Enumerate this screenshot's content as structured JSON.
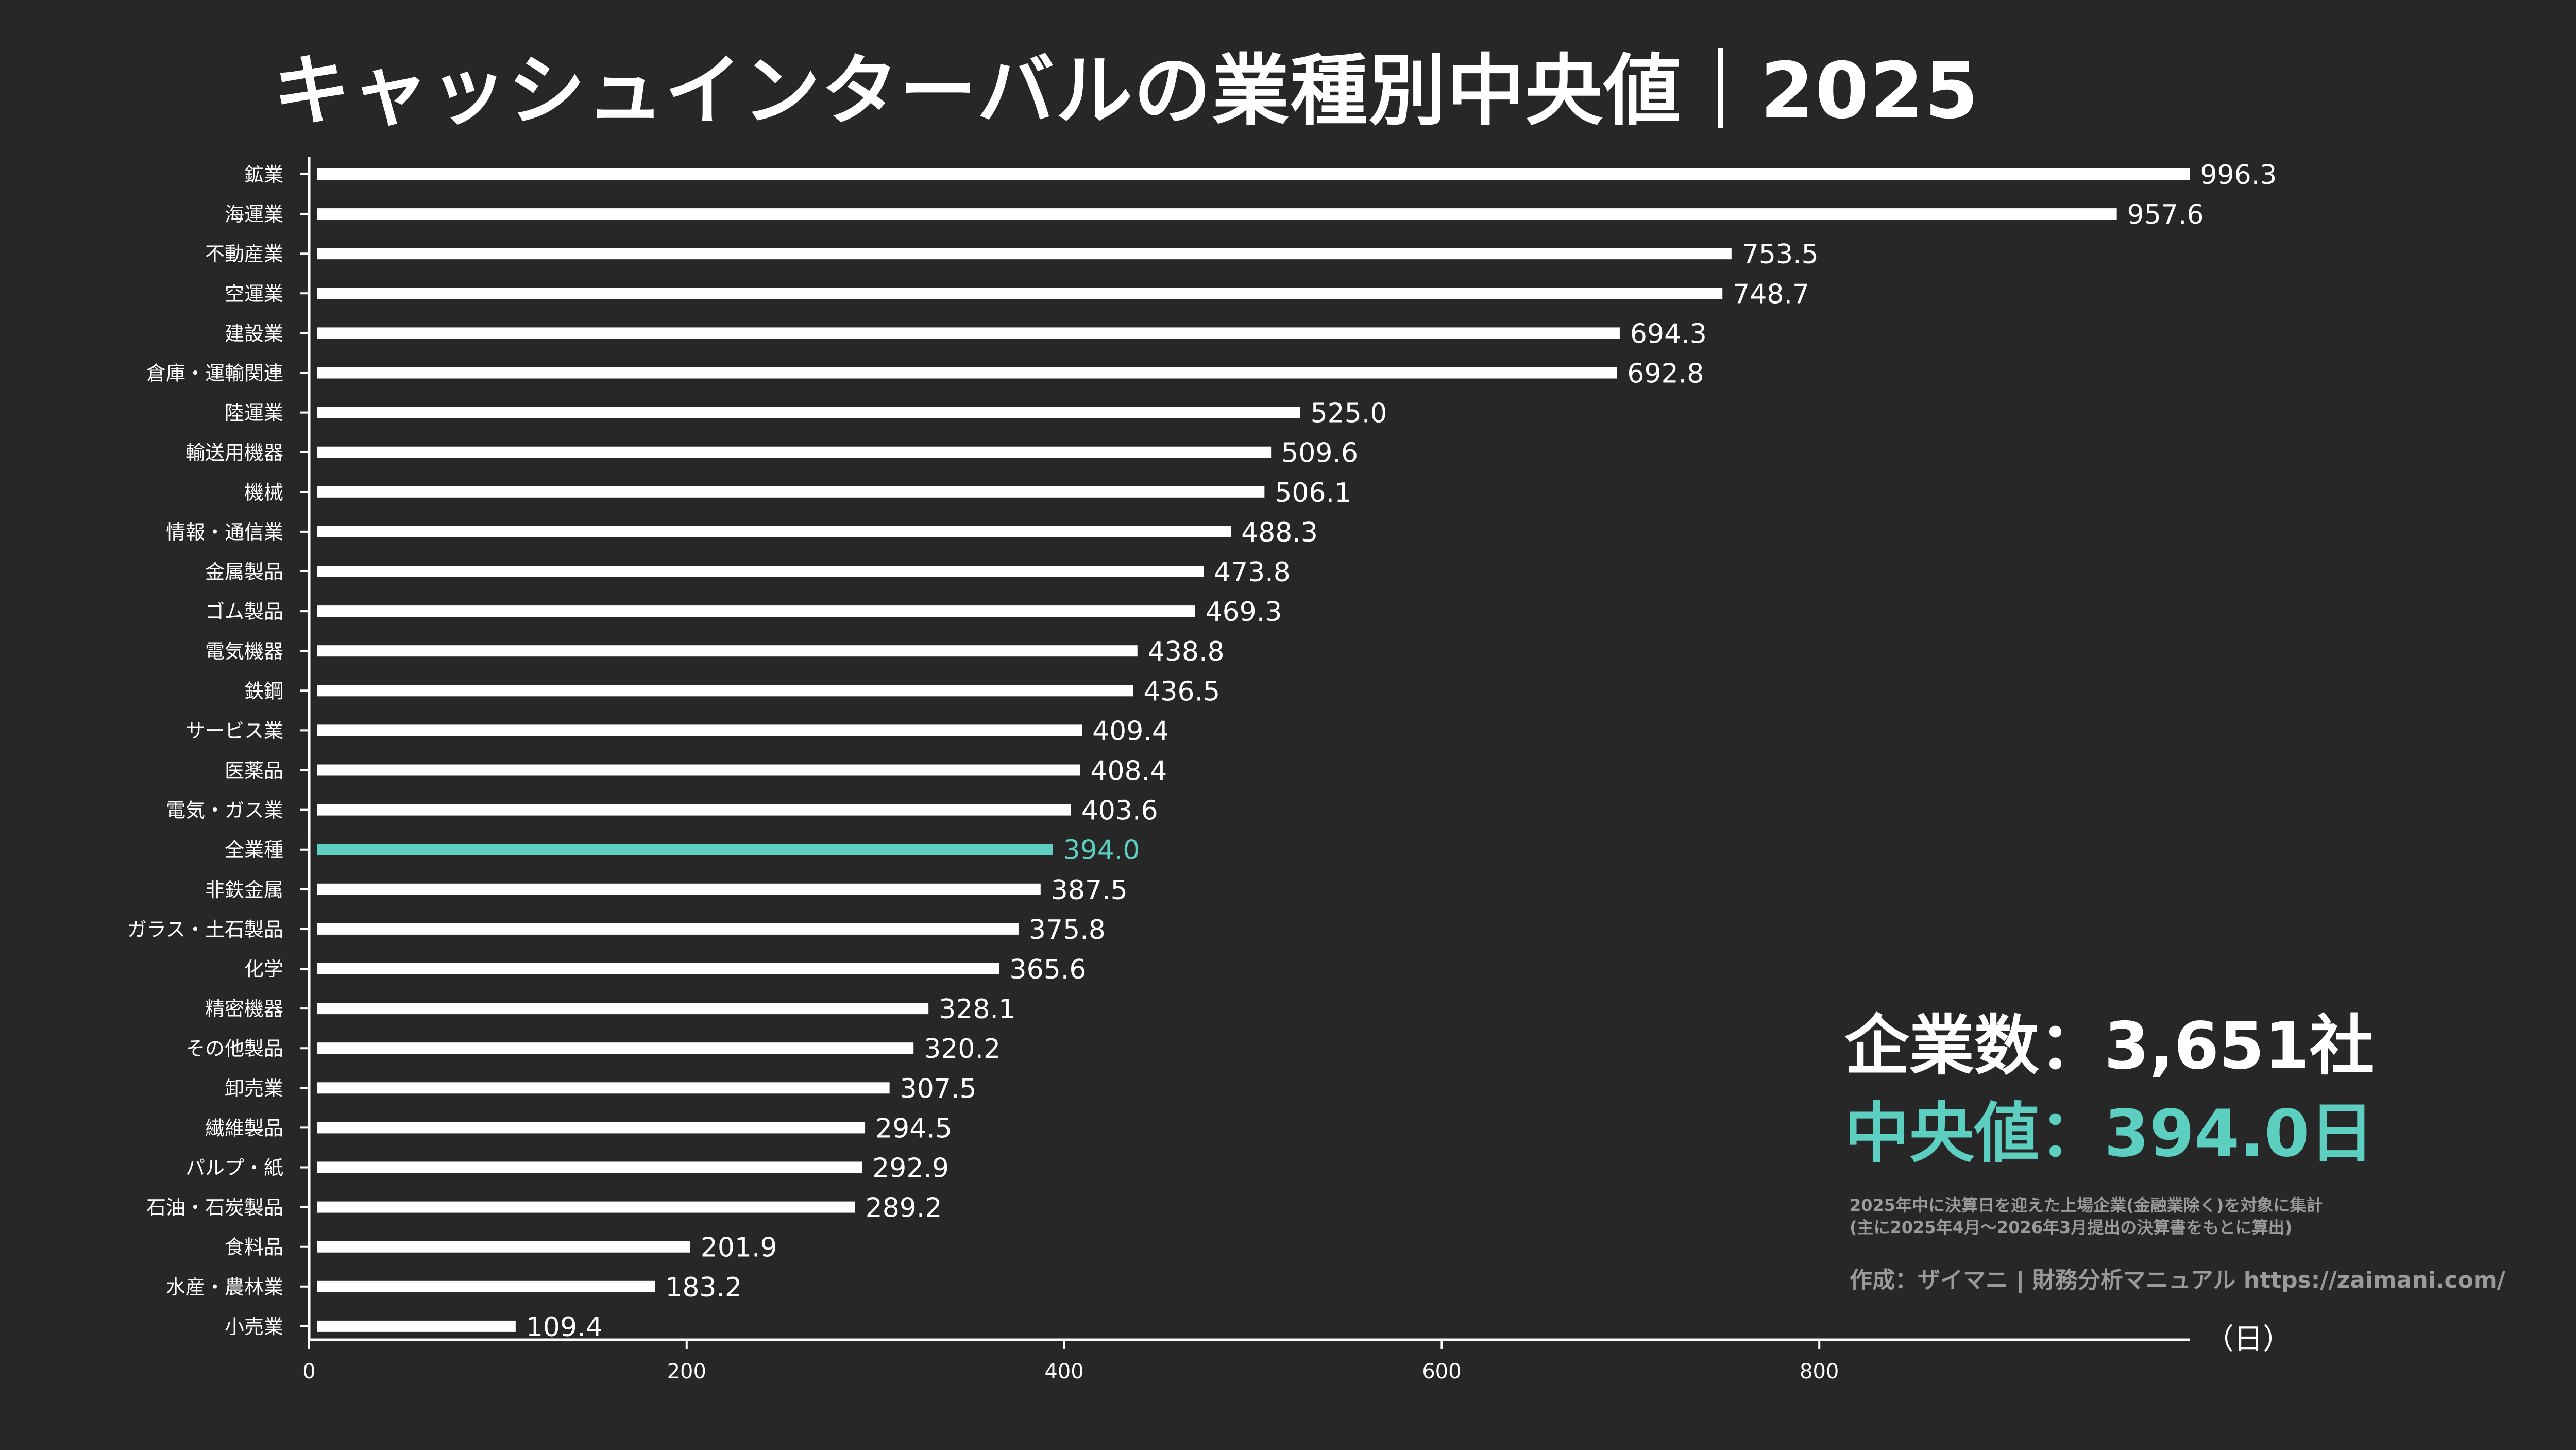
{
  "title": "キャッシュインターバルの業種別中央値｜2025",
  "summary": {
    "company_count": "企業数：3,651社",
    "median": "中央値：394.0日"
  },
  "notes": {
    "line1": "2025年中に決算日を迎えた上場企業(金融業除く)を対象に集計",
    "line2": "(主に2025年4月〜2026年3月提出の決算書をもとに算出)"
  },
  "credit": "作成：ザイマニ | 財務分析マニュアル https://zaimani.com/",
  "colors": {
    "background": "#272727",
    "bar": "#ffffff",
    "highlight": "#5ccfc0",
    "note_text": "#9a9a9a"
  },
  "chart_data": {
    "type": "bar",
    "orientation": "horizontal",
    "categories": [
      "鉱業",
      "海運業",
      "不動産業",
      "空運業",
      "建設業",
      "倉庫・運輸関連",
      "陸運業",
      "輸送用機器",
      "機械",
      "情報・通信業",
      "金属製品",
      "ゴム製品",
      "電気機器",
      "鉄鋼",
      "サービス業",
      "医薬品",
      "電気・ガス業",
      "全業種",
      "非鉄金属",
      "ガラス・土石製品",
      "化学",
      "精密機器",
      "その他製品",
      "卸売業",
      "繊維製品",
      "パルプ・紙",
      "石油・石炭製品",
      "食料品",
      "水産・農林業",
      "小売業"
    ],
    "values": [
      996.3,
      957.6,
      753.5,
      748.7,
      694.3,
      692.8,
      525.0,
      509.6,
      506.1,
      488.3,
      473.8,
      469.3,
      438.8,
      436.5,
      409.4,
      408.4,
      403.6,
      394.0,
      387.5,
      375.8,
      365.6,
      328.1,
      320.2,
      307.5,
      294.5,
      292.9,
      289.2,
      201.9,
      183.2,
      109.4
    ],
    "value_labels": [
      "996.3",
      "957.6",
      "753.5",
      "748.7",
      "694.3",
      "692.8",
      "525.0",
      "509.6",
      "506.1",
      "488.3",
      "473.8",
      "469.3",
      "438.8",
      "436.5",
      "409.4",
      "408.4",
      "403.6",
      "394.0",
      "387.5",
      "375.8",
      "365.6",
      "328.1",
      "320.2",
      "307.5",
      "294.5",
      "292.9",
      "289.2",
      "201.9",
      "183.2",
      "109.4"
    ],
    "highlight_category": "全業種",
    "xlim": [
      0,
      1000
    ],
    "xticks": [
      0,
      200,
      400,
      600,
      800
    ],
    "xunit": "（日）",
    "grid": false
  }
}
